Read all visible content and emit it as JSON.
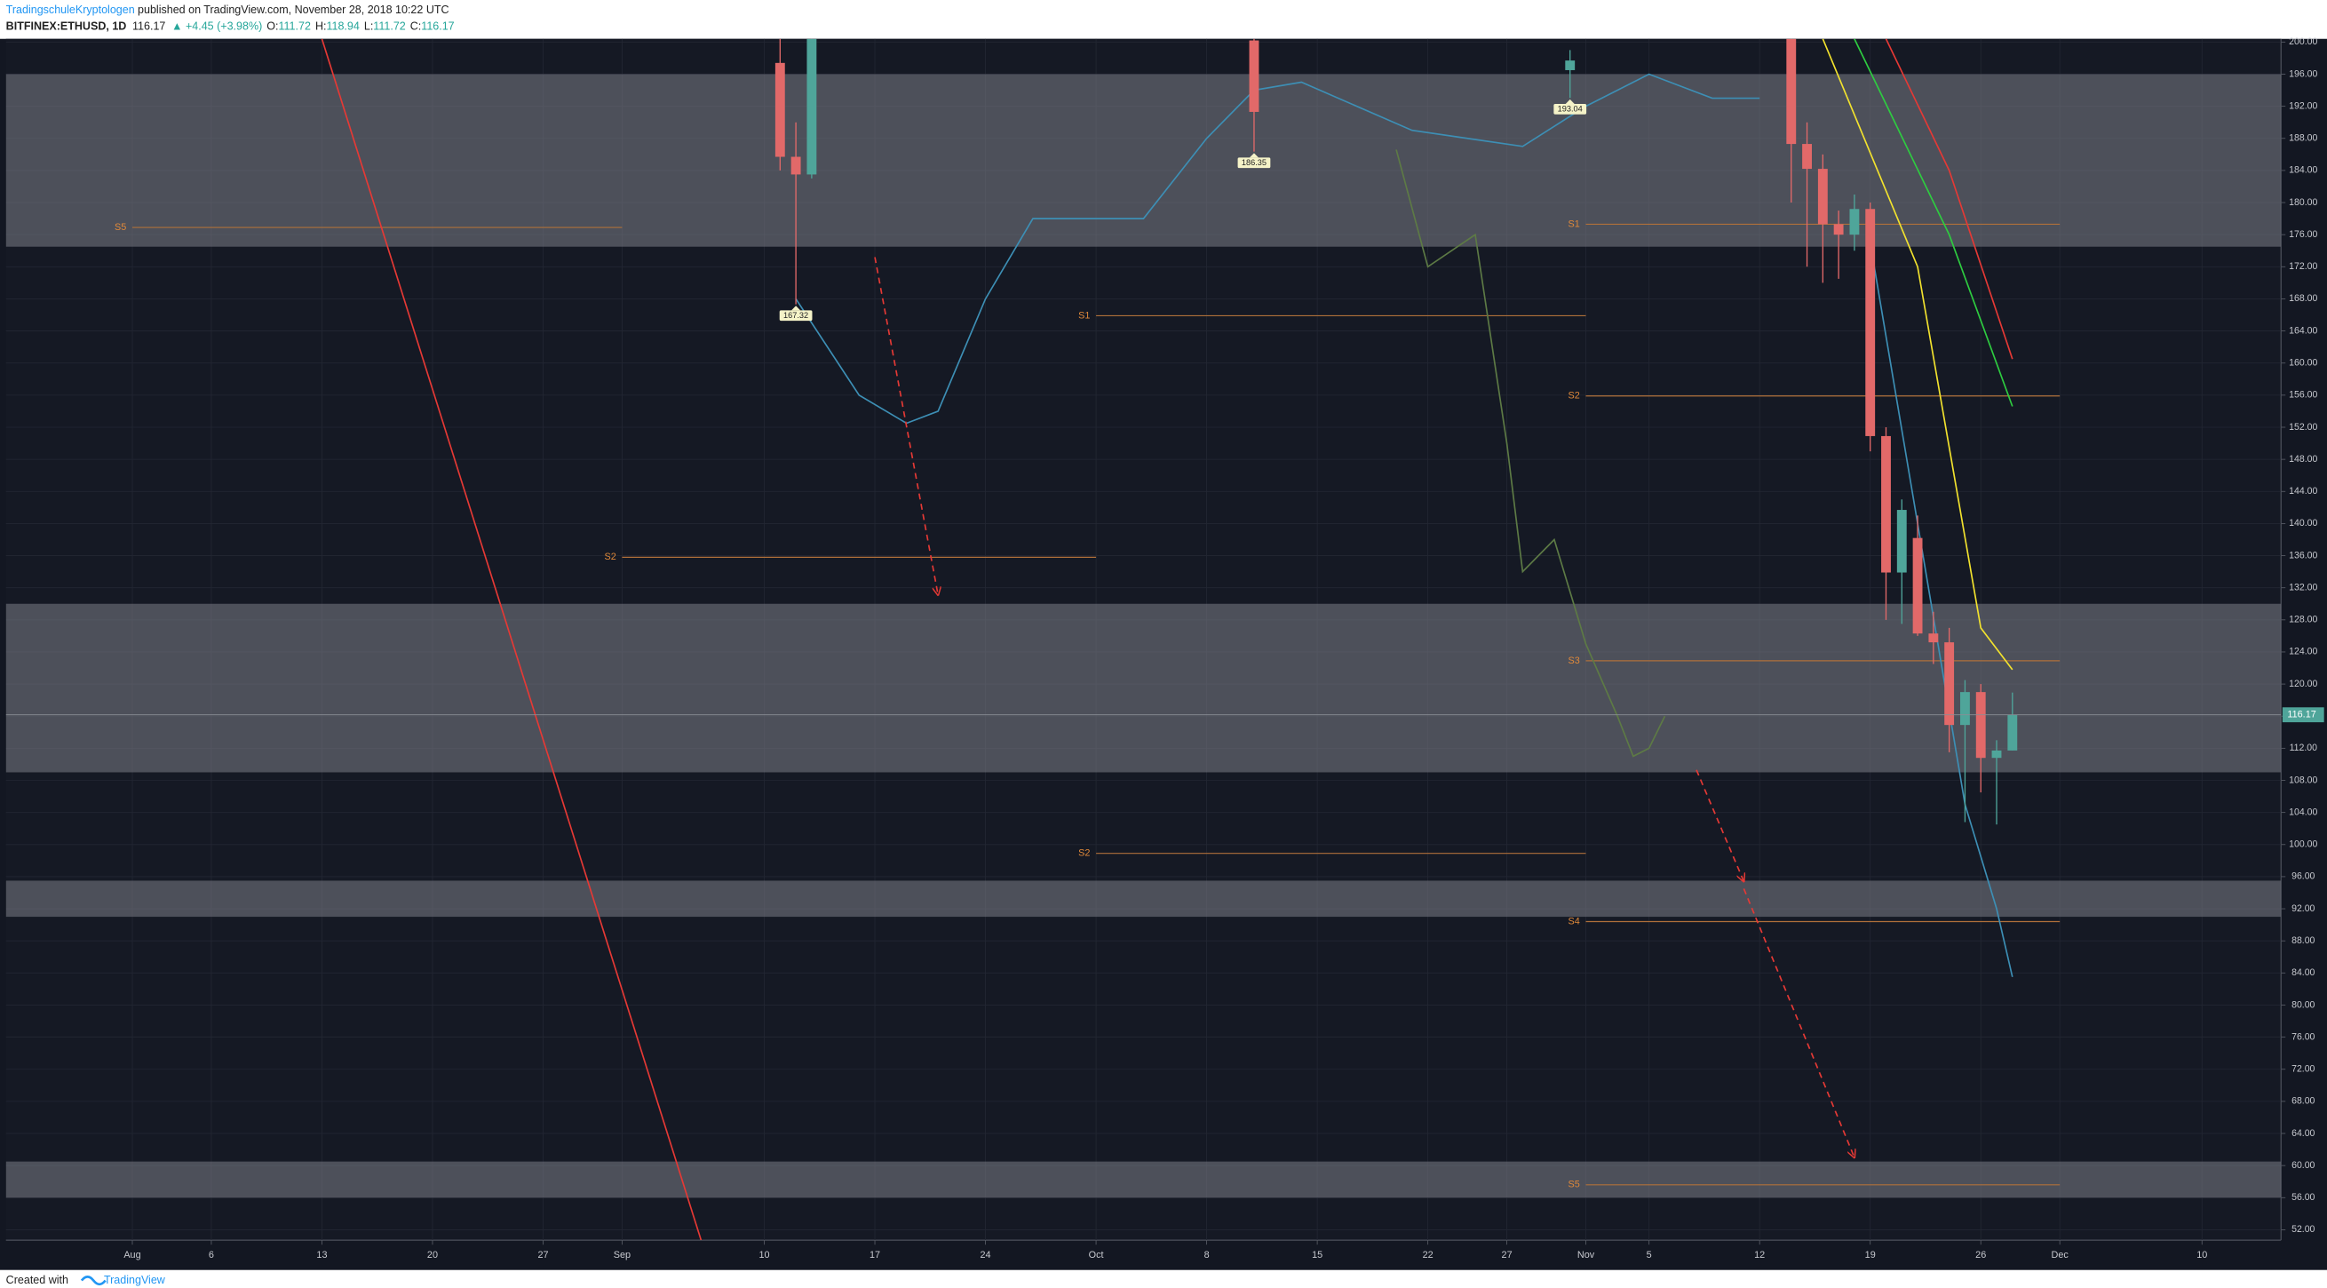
{
  "header": {
    "publisher": "TradingschuleKryptologen",
    "published": "published on TradingView.com, November 28, 2018 10:22 UTC",
    "symbol": "BITFINEX:ETHUSD, 1D",
    "last": "116.17",
    "change": "▲ +4.45 (+3.98%)",
    "ohlc": [
      {
        "label": "O:",
        "value": "111.72"
      },
      {
        "label": "H:",
        "value": "118.94"
      },
      {
        "label": "L:",
        "value": "111.72"
      },
      {
        "label": "C:",
        "value": "116.17"
      }
    ]
  },
  "footer": {
    "created": "Created with",
    "brand": "TradingView"
  },
  "chart_data": {
    "type": "candlestick",
    "xlim": [
      "2018-07-24",
      "2018-12-15"
    ],
    "ylim": [
      50.7,
      200.4
    ],
    "grid": true,
    "xticks": [
      {
        "value": "2018-08-01",
        "label": "Aug"
      },
      {
        "value": "2018-08-06",
        "label": "6"
      },
      {
        "value": "2018-08-13",
        "label": "13"
      },
      {
        "value": "2018-08-20",
        "label": "20"
      },
      {
        "value": "2018-08-27",
        "label": "27"
      },
      {
        "value": "2018-09-01",
        "label": "Sep"
      },
      {
        "value": "2018-09-10",
        "label": "10"
      },
      {
        "value": "2018-09-17",
        "label": "17"
      },
      {
        "value": "2018-09-24",
        "label": "24"
      },
      {
        "value": "2018-10-01",
        "label": "Oct"
      },
      {
        "value": "2018-10-08",
        "label": "8"
      },
      {
        "value": "2018-10-15",
        "label": "15"
      },
      {
        "value": "2018-10-22",
        "label": "22"
      },
      {
        "value": "2018-10-27",
        "label": "27"
      },
      {
        "value": "2018-11-01",
        "label": "Nov"
      },
      {
        "value": "2018-11-05",
        "label": "5"
      },
      {
        "value": "2018-11-12",
        "label": "12"
      },
      {
        "value": "2018-11-19",
        "label": "19"
      },
      {
        "value": "2018-11-26",
        "label": "26"
      },
      {
        "value": "2018-12-01",
        "label": "Dec"
      },
      {
        "value": "2018-12-10",
        "label": "10"
      }
    ],
    "yticks": [
      {
        "value": 200,
        "label": "200.00"
      },
      {
        "value": 196,
        "label": "196.00"
      },
      {
        "value": 192,
        "label": "192.00"
      },
      {
        "value": 188,
        "label": "188.00"
      },
      {
        "value": 184,
        "label": "184.00"
      },
      {
        "value": 180,
        "label": "180.00"
      },
      {
        "value": 176,
        "label": "176.00"
      },
      {
        "value": 172,
        "label": "172.00"
      },
      {
        "value": 168,
        "label": "168.00"
      },
      {
        "value": 164,
        "label": "164.00"
      },
      {
        "value": 160,
        "label": "160.00"
      },
      {
        "value": 156,
        "label": "156.00"
      },
      {
        "value": 152,
        "label": "152.00"
      },
      {
        "value": 148,
        "label": "148.00"
      },
      {
        "value": 144,
        "label": "144.00"
      },
      {
        "value": 140,
        "label": "140.00"
      },
      {
        "value": 136,
        "label": "136.00"
      },
      {
        "value": 132,
        "label": "132.00"
      },
      {
        "value": 128,
        "label": "128.00"
      },
      {
        "value": 124,
        "label": "124.00"
      },
      {
        "value": 120,
        "label": "120.00"
      },
      {
        "value": 116,
        "label": "116.00"
      },
      {
        "value": 112,
        "label": "112.00"
      },
      {
        "value": 108,
        "label": "108.00"
      },
      {
        "value": 104,
        "label": "104.00"
      },
      {
        "value": 100,
        "label": "100.00"
      },
      {
        "value": 96,
        "label": "96.00"
      },
      {
        "value": 92,
        "label": "92.00"
      },
      {
        "value": 88,
        "label": "88.00"
      },
      {
        "value": 84,
        "label": "84.00"
      },
      {
        "value": 80,
        "label": "80.00"
      },
      {
        "value": 76,
        "label": "76.00"
      },
      {
        "value": 72,
        "label": "72.00"
      },
      {
        "value": 68,
        "label": "68.00"
      },
      {
        "value": 64,
        "label": "64.00"
      },
      {
        "value": 60,
        "label": "60.00"
      },
      {
        "value": 56,
        "label": "56.00"
      },
      {
        "value": 52,
        "label": "52.00"
      }
    ],
    "up_color": "#4fa59a",
    "down_color": "#e26969",
    "candles": {
      "x": [
        "2018-09-11",
        "2018-09-12",
        "2018-09-13",
        "2018-10-11",
        "2018-10-31",
        "2018-11-14",
        "2018-11-15",
        "2018-11-16",
        "2018-11-17",
        "2018-11-18",
        "2018-11-19",
        "2018-11-20",
        "2018-11-21",
        "2018-11-22",
        "2018-11-23",
        "2018-11-24",
        "2018-11-25",
        "2018-11-26",
        "2018-11-27",
        "2018-11-28"
      ],
      "open": [
        197.4,
        185.7,
        183.5,
        200.2,
        196.5,
        200.4,
        187.3,
        184.2,
        177.3,
        176,
        179.2,
        150.9,
        133.9,
        138.2,
        126.3,
        125.2,
        114.9,
        119,
        110.8,
        111.72
      ],
      "high": [
        200.4,
        190,
        200.4,
        200.4,
        199,
        200.4,
        190,
        186,
        179,
        181,
        180,
        152,
        143,
        141,
        129,
        127,
        120.5,
        120,
        113,
        118.94
      ],
      "low": [
        184,
        167.32,
        183,
        186.35,
        193.04,
        180,
        172,
        170,
        170.5,
        174,
        149,
        128,
        127.5,
        126,
        122.5,
        111.5,
        102.8,
        106.5,
        102.5,
        111.72
      ],
      "close": [
        185.7,
        183.5,
        200.4,
        191.3,
        197.7,
        187.3,
        184.2,
        177.3,
        176,
        179.2,
        150.9,
        133.9,
        141.7,
        126.3,
        125.2,
        114.9,
        119,
        110.8,
        111.72,
        116.17
      ]
    },
    "low_labels": [
      {
        "x": "2018-09-12",
        "value": 167.32
      },
      {
        "x": "2018-10-11",
        "value": 186.35
      },
      {
        "x": "2018-10-31",
        "value": 193.04
      }
    ],
    "zones": [
      {
        "low": 174.5,
        "high": 196
      },
      {
        "low": 109,
        "high": 130
      },
      {
        "low": 91,
        "high": 95.5
      },
      {
        "low": 56,
        "high": 60.5
      }
    ],
    "pivots": [
      {
        "label": "S5",
        "value": 176.9,
        "from": "2018-08-01",
        "to": "2018-09-01"
      },
      {
        "label": "S2",
        "value": 135.8,
        "from": "2018-09-01",
        "to": "2018-10-01"
      },
      {
        "label": "S1",
        "value": 165.9,
        "from": "2018-10-01",
        "to": "2018-11-01"
      },
      {
        "label": "S2",
        "value": 98.9,
        "from": "2018-10-01",
        "to": "2018-11-01"
      },
      {
        "label": "S1",
        "value": 177.3,
        "from": "2018-11-01",
        "to": "2018-12-01"
      },
      {
        "label": "S2",
        "value": 155.9,
        "from": "2018-11-01",
        "to": "2018-12-01"
      },
      {
        "label": "S3",
        "value": 122.9,
        "from": "2018-11-01",
        "to": "2018-12-01"
      },
      {
        "label": "S4",
        "value": 90.4,
        "from": "2018-11-01",
        "to": "2018-12-01"
      },
      {
        "label": "S5",
        "value": 57.6,
        "from": "2018-11-01",
        "to": "2018-12-01"
      }
    ],
    "pivot_color": "#b0703a",
    "lines": [
      {
        "color": "#e53935",
        "x": [
          "2018-08-13",
          "2018-09-06"
        ],
        "values": [
          200.4,
          50.7
        ]
      },
      {
        "color": "#f2e22e",
        "x": [
          "2018-11-16",
          "2018-11-22",
          "2018-11-26",
          "2018-11-28"
        ],
        "values": [
          200.4,
          172,
          127,
          121.8
        ]
      },
      {
        "color": "#2ecc40",
        "x": [
          "2018-11-18",
          "2018-11-24",
          "2018-11-28"
        ],
        "values": [
          200.4,
          176,
          154.6
        ]
      },
      {
        "color": "#e53935",
        "x": [
          "2018-11-20",
          "2018-11-24",
          "2018-11-28"
        ],
        "values": [
          200.4,
          184,
          160.5
        ]
      },
      {
        "color": "#3d8fb5",
        "x": [
          "2018-11-19",
          "2018-11-22",
          "2018-11-25",
          "2018-11-27",
          "2018-11-28"
        ],
        "values": [
          175,
          140,
          105,
          92,
          83.5
        ]
      },
      {
        "color": "#3d8fb5",
        "x": [
          "2018-09-12",
          "2018-09-16",
          "2018-09-19",
          "2018-09-21",
          "2018-09-24",
          "2018-09-27",
          "2018-10-04",
          "2018-10-08",
          "2018-10-11",
          "2018-10-14",
          "2018-10-21",
          "2018-10-28",
          "2018-11-01",
          "2018-11-05",
          "2018-11-09",
          "2018-11-12"
        ],
        "values": [
          168,
          156,
          152.5,
          154,
          168,
          178,
          178,
          188,
          194,
          195,
          189,
          187,
          192,
          196,
          193,
          193
        ]
      },
      {
        "color": "#5d7a45",
        "x": [
          "2018-10-20",
          "2018-10-22",
          "2018-10-25",
          "2018-10-27",
          "2018-10-28",
          "2018-10-30",
          "2018-11-01",
          "2018-11-03",
          "2018-11-04",
          "2018-11-05",
          "2018-11-06"
        ],
        "values": [
          186.6,
          172,
          176,
          150,
          134,
          138,
          125,
          116,
          111,
          112,
          116
        ]
      }
    ],
    "arrows": [
      {
        "x": [
          "2018-09-17",
          "2018-09-21"
        ],
        "values": [
          173.2,
          131.1
        ]
      },
      {
        "x": [
          "2018-11-08",
          "2018-11-11"
        ],
        "values": [
          109.3,
          95.4
        ]
      },
      {
        "x": [
          "2018-11-11",
          "2018-11-18"
        ],
        "values": [
          94.5,
          61
        ]
      }
    ],
    "arrow_color": "#e53935",
    "last_price": 116.17,
    "last_label": "116.17"
  }
}
